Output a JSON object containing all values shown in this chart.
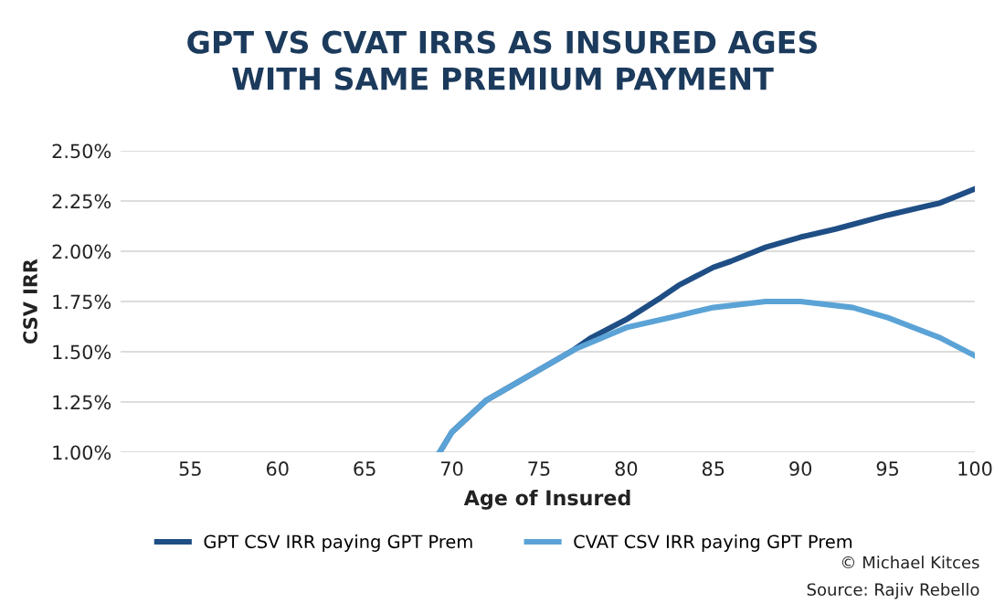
{
  "chart_data": {
    "type": "line",
    "title": "GPT VS CVAT IRRS AS INSURED AGES\nWITH SAME PREMIUM PAYMENT",
    "xlabel": "Age of Insured",
    "ylabel": "CSV IRR",
    "series": [
      {
        "name": "GPT CSV IRR paying GPT Prem",
        "color": "#1f4e85",
        "x": [
          69.3,
          70,
          72,
          75,
          77,
          78,
          80,
          82,
          83,
          85,
          86,
          88,
          90,
          92,
          95,
          98,
          100
        ],
        "values": [
          1.0,
          1.1,
          1.26,
          1.41,
          1.51,
          1.57,
          1.66,
          1.77,
          1.83,
          1.92,
          1.95,
          2.02,
          2.07,
          2.11,
          2.18,
          2.24,
          2.31
        ]
      },
      {
        "name": "CVAT CSV IRR paying GPT Prem",
        "color": "#5ba3d6",
        "x": [
          69.3,
          70,
          72,
          75,
          77,
          80,
          83,
          85,
          88,
          90,
          93,
          95,
          98,
          100
        ],
        "values": [
          1.0,
          1.1,
          1.26,
          1.41,
          1.51,
          1.62,
          1.68,
          1.72,
          1.75,
          1.75,
          1.72,
          1.67,
          1.57,
          1.48
        ]
      }
    ],
    "xlim": [
      51,
      100
    ],
    "xticks": [
      55,
      60,
      65,
      70,
      75,
      80,
      85,
      90,
      95,
      100
    ],
    "ylim": [
      1.0,
      2.5
    ],
    "yticks": [
      {
        "value": 1.0,
        "label": "1.00%"
      },
      {
        "value": 1.25,
        "label": "1.25%"
      },
      {
        "value": 1.5,
        "label": "1.50%"
      },
      {
        "value": 1.75,
        "label": "1.75%"
      },
      {
        "value": 2.0,
        "label": "2.00%"
      },
      {
        "value": 2.25,
        "label": "2.25%"
      },
      {
        "value": 2.5,
        "label": "2.50%"
      }
    ],
    "grid": "y",
    "legend": "bottom",
    "marker": "none",
    "line_style": "solid",
    "annotations": [
      "© Michael Kitces",
      "Source: Rajiv Rebello"
    ]
  }
}
